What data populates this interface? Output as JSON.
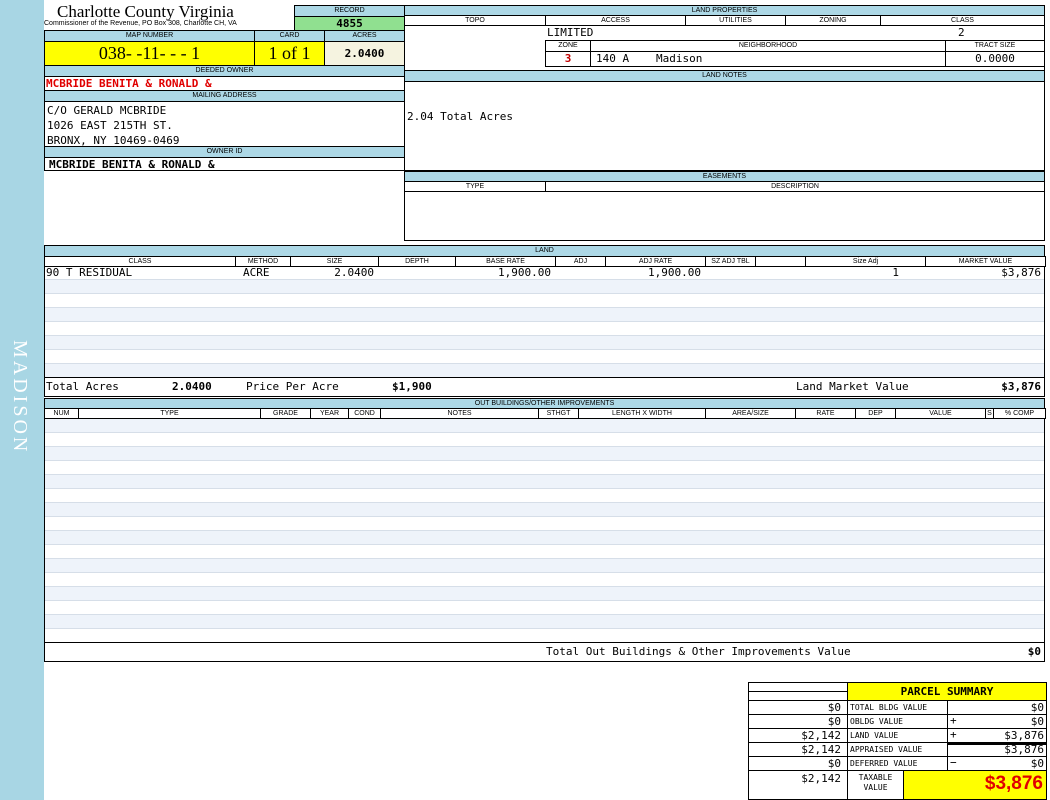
{
  "sidebar": {
    "label": "MADISON",
    "color": "#add8e6"
  },
  "header": {
    "title": "Charlotte County Virginia",
    "subtitle": "Commissioner of the Revenue, PO Box 308, Charlotte CH, VA",
    "record_label": "RECORD",
    "record": "4855",
    "map_label": "MAP NUMBER",
    "map_number": "038- -11- - - 1",
    "card_label": "CARD",
    "card": "1 of 1",
    "acres_label": "ACRES",
    "acres": "2.0400"
  },
  "owner": {
    "deeded_label": "DEEDED OWNER",
    "deeded": "MCBRIDE BENITA & RONALD &",
    "mailing_label": "MAILING ADDRESS",
    "mailing": [
      "C/O GERALD MCBRIDE",
      "1026 EAST 215TH ST.",
      "BRONX, NY 10469-0469"
    ],
    "id_label": "OWNER ID",
    "id": "MCBRIDE BENITA & RONALD &"
  },
  "land_properties": {
    "label": "LAND PROPERTIES",
    "topo": "TOPO",
    "access": "ACCESS",
    "utilities": "UTILITIES",
    "zoning": "ZONING",
    "class": "CLASS",
    "access_value": "LIMITED",
    "class_value": "2",
    "zone_label": "ZONE",
    "neighborhood_label": "NEIGHBORHOOD",
    "tract_label": "TRACT SIZE",
    "zone": "3",
    "neighborhood_code": "140 A",
    "neighborhood": "Madison",
    "tract": "0.0000"
  },
  "land_notes": {
    "label": "LAND NOTES",
    "text": "2.04 Total Acres"
  },
  "easements": {
    "label": "EASEMENTS",
    "type": "TYPE",
    "description": "DESCRIPTION"
  },
  "land": {
    "label": "LAND",
    "columns": [
      "CLASS",
      "METHOD",
      "SIZE",
      "DEPTH",
      "BASE RATE",
      "ADJ",
      "ADJ RATE",
      "SZ ADJ TBL",
      "",
      "Size Adj",
      "MARKET VALUE"
    ],
    "rows": [
      [
        "90 T RESIDUAL",
        "ACRE",
        "2.0400",
        "",
        "1,900.00",
        "",
        "1,900.00",
        "",
        "",
        "1",
        "$3,876"
      ]
    ],
    "total_acres_label": "Total Acres",
    "total_acres": "2.0400",
    "ppa_label": "Price Per Acre",
    "ppa": "$1,900",
    "lmv_label": "Land Market Value",
    "lmv": "$3,876"
  },
  "outbuildings": {
    "label": "OUT BUILDINGS/OTHER IMPROVEMENTS",
    "columns": [
      "NUM",
      "TYPE",
      "GRADE",
      "YEAR",
      "COND",
      "NOTES",
      "STHGT",
      "LENGTH X WIDTH",
      "AREA/SIZE",
      "RATE",
      "DEP",
      "VALUE",
      "S",
      "% COMP"
    ],
    "total_label": "Total Out Buildings & Other Improvements Value",
    "total": "$0"
  },
  "summary": {
    "title": "PARCEL SUMMARY",
    "rows": [
      {
        "prev": "$0",
        "label": "TOTAL BLDG VALUE",
        "op": "",
        "value": "$0"
      },
      {
        "prev": "$0",
        "label": "OBLDG VALUE",
        "op": "+",
        "value": "$0"
      },
      {
        "prev": "$2,142",
        "label": "LAND VALUE",
        "op": "+",
        "value": "$3,876"
      },
      {
        "prev": "$2,142",
        "label": "APPRAISED VALUE",
        "op": "",
        "value": "$3,876"
      },
      {
        "prev": "$0",
        "label": "DEFERRED VALUE",
        "op": "−",
        "value": "$0"
      }
    ],
    "taxable_prev": "$2,142",
    "taxable_label": "TAXABLE VALUE",
    "taxable": "$3,876"
  }
}
